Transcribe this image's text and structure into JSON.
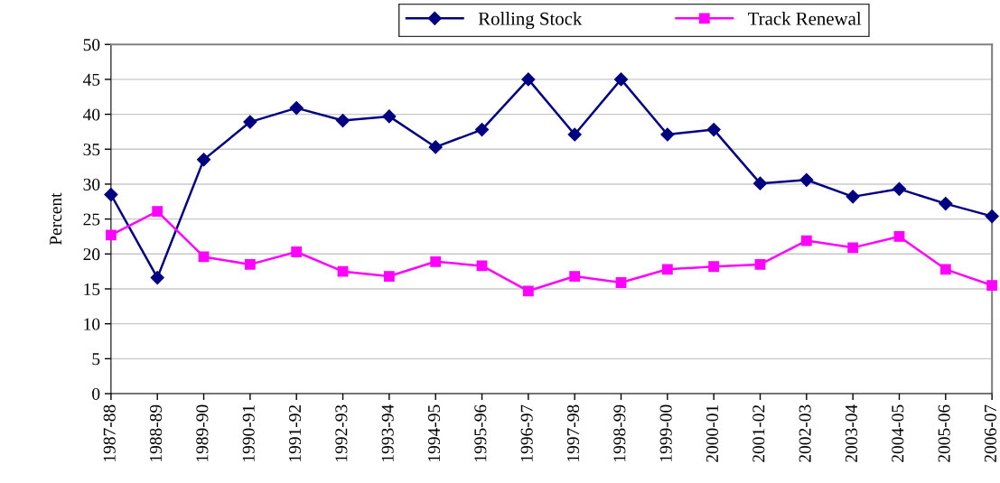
{
  "chart_data": {
    "type": "line",
    "ylabel": "Percent",
    "categories": [
      "1987-88",
      "1988-89",
      "1989-90",
      "1990-91",
      "1991-92",
      "1992-93",
      "1993-94",
      "1994-95",
      "1995-96",
      "1996-97",
      "1997-98",
      "1998-99",
      "1999-00",
      "2000-01",
      "2001-02",
      "2002-03",
      "2003-04",
      "2004-05",
      "2005-06",
      "2006-07"
    ],
    "series": [
      {
        "name": "Rolling Stock",
        "color": "#000080",
        "marker": "diamond",
        "values": [
          28.5,
          16.6,
          33.5,
          38.9,
          40.9,
          39.1,
          39.7,
          35.3,
          37.8,
          45.0,
          37.1,
          45.0,
          37.1,
          37.8,
          30.1,
          30.6,
          28.2,
          29.3,
          27.2,
          25.4
        ]
      },
      {
        "name": "Track Renewal",
        "color": "#ff00ff",
        "marker": "square",
        "values": [
          22.7,
          26.1,
          19.6,
          18.5,
          20.3,
          17.5,
          16.8,
          18.9,
          18.3,
          14.7,
          16.8,
          15.9,
          17.8,
          18.2,
          18.5,
          21.9,
          20.9,
          22.5,
          17.8,
          15.5
        ]
      }
    ],
    "ylim": [
      0,
      50
    ],
    "yticks": [
      0,
      5,
      10,
      15,
      20,
      25,
      30,
      35,
      40,
      45,
      50
    ],
    "grid": "y",
    "legend": "top",
    "line_style": "solid"
  }
}
